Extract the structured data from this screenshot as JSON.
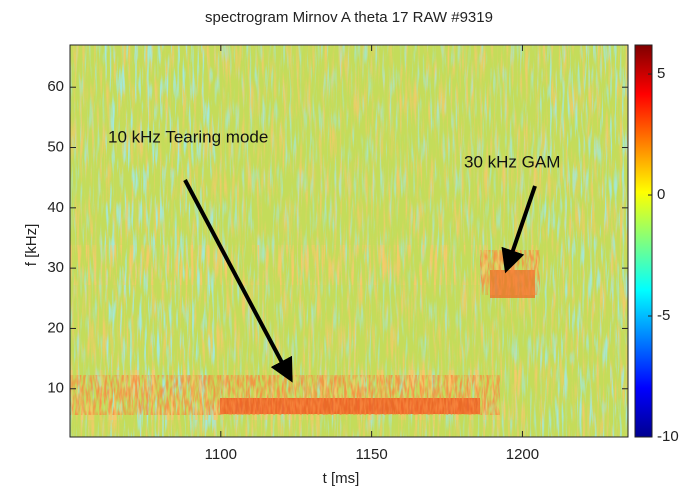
{
  "chart_data": {
    "type": "spectrogram",
    "title": "spectrogram Mirnov A theta 17 RAW #9319",
    "xlabel": "t [ms]",
    "ylabel": "f [kHz]",
    "xlim": [
      1050,
      1235
    ],
    "xticks": [
      1100,
      1150,
      1200
    ],
    "ylim": [
      2,
      67
    ],
    "yticks": [
      10,
      20,
      30,
      40,
      50,
      60
    ],
    "clim": [
      -10,
      6.2
    ],
    "cticks": [
      -10,
      -5,
      0,
      5
    ],
    "colormap": "jet",
    "grid": false,
    "annotations": [
      {
        "text": "10 kHz Tearing mode"
      },
      {
        "text": "30 kHz GAM"
      }
    ]
  }
}
